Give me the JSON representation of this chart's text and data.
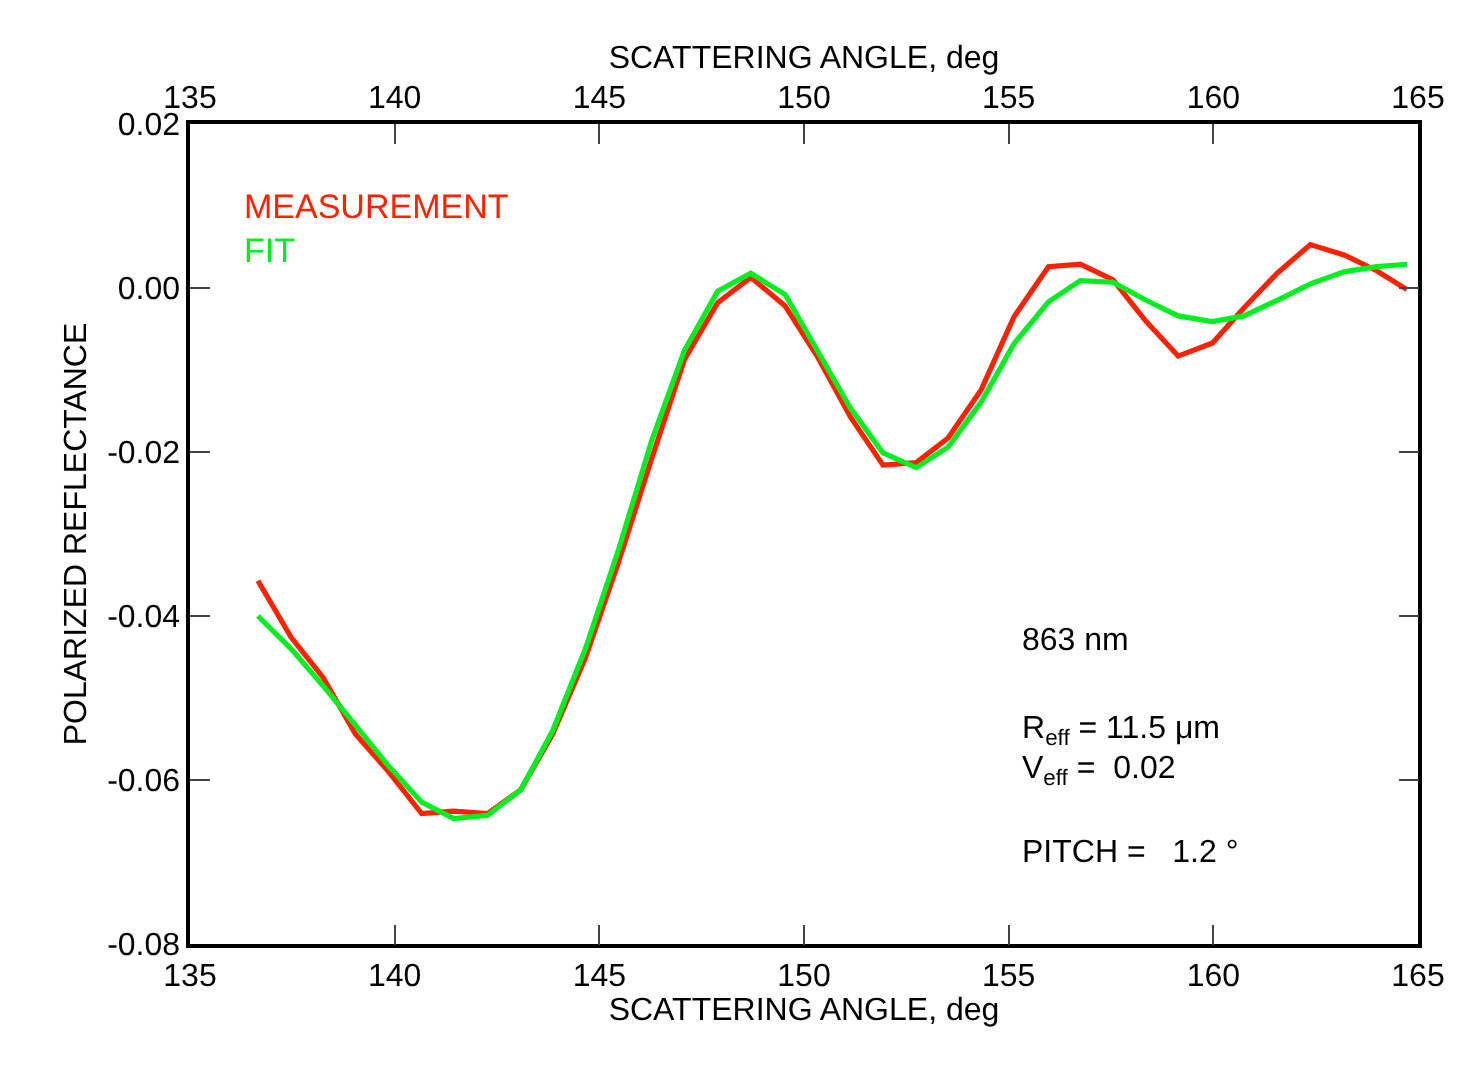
{
  "chart_data": {
    "type": "line",
    "xlabel": "SCATTERING ANGLE, deg",
    "x2label": "SCATTERING ANGLE, deg",
    "ylabel": "POLARIZED REFLECTANCE",
    "x": [
      136.66,
      137.47,
      138.25,
      139.04,
      139.82,
      140.66,
      141.44,
      142.27,
      143.08,
      143.86,
      144.66,
      145.47,
      146.28,
      147.08,
      147.89,
      148.7,
      149.54,
      150.32,
      151.13,
      151.93,
      152.74,
      153.52,
      154.33,
      155.13,
      155.97,
      156.75,
      157.55,
      158.36,
      159.14,
      159.98,
      160.75,
      161.56,
      162.37,
      163.21,
      163.99,
      164.73
    ],
    "series": [
      {
        "name": "MEASUREMENT",
        "color": "#ff2200",
        "values": [
          -0.0357,
          -0.0426,
          -0.0475,
          -0.0544,
          -0.0588,
          -0.0641,
          -0.0638,
          -0.0641,
          -0.0612,
          -0.0544,
          -0.0451,
          -0.0334,
          -0.0208,
          -0.0087,
          -0.0018,
          0.0013,
          -0.0022,
          -0.0083,
          -0.0157,
          -0.0216,
          -0.0213,
          -0.0183,
          -0.0124,
          -0.0035,
          0.0026,
          0.0029,
          0.001,
          -0.0041,
          -0.0083,
          -0.0067,
          -0.0024,
          0.0018,
          0.0053,
          0.004,
          0.0021,
          -0.0002
        ]
      },
      {
        "name": "FIT",
        "color": "#00ee22",
        "values": [
          -0.04,
          -0.044,
          -0.0485,
          -0.0533,
          -0.0581,
          -0.0627,
          -0.0647,
          -0.0643,
          -0.0612,
          -0.054,
          -0.044,
          -0.0319,
          -0.0186,
          -0.0076,
          -0.0004,
          0.0018,
          -0.0008,
          -0.0076,
          -0.0146,
          -0.0201,
          -0.0219,
          -0.0194,
          -0.0139,
          -0.0068,
          -0.0017,
          0.0009,
          0.0007,
          -0.0015,
          -0.0034,
          -0.0041,
          -0.0034,
          -0.0015,
          0.0005,
          0.002,
          0.0026,
          0.0029
        ]
      }
    ],
    "xlim": [
      135,
      165
    ],
    "xticks": [
      135,
      140,
      145,
      150,
      155,
      160,
      165
    ],
    "x2lim": [
      135,
      165
    ],
    "x2ticks": [
      135,
      140,
      145,
      150,
      155,
      160,
      165
    ],
    "ylim": [
      -0.08,
      0.02
    ],
    "yticks": [
      {
        "value": -0.08,
        "label": "-0.08"
      },
      {
        "value": -0.06,
        "label": "-0.06"
      },
      {
        "value": -0.04,
        "label": "-0.04"
      },
      {
        "value": -0.02,
        "label": "-0.02"
      },
      {
        "value": 0,
        "label": "0.00"
      },
      {
        "value": 0.02,
        "label": "0.02"
      }
    ],
    "annotations": [
      "863 nm",
      "R$_{eff}$ = 11.5 μm",
      "V$_{eff}$ =  0.02",
      "PITCH =   1.2 °"
    ],
    "legend": "top left",
    "marker": "none",
    "line_style": "solid"
  }
}
